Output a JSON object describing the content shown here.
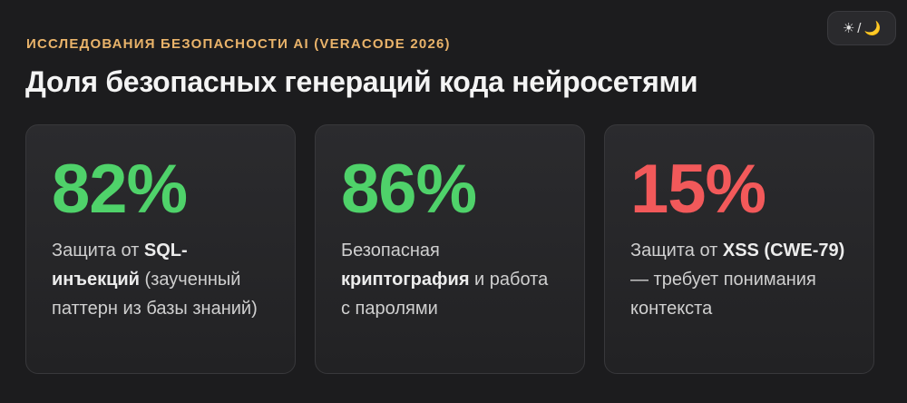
{
  "header": {
    "kicker": "ИССЛЕДОВАНИЯ БЕЗОПАСНОСТИ AI (VERACODE 2026)",
    "title": "Доля безопасных генераций кода нейросетями"
  },
  "theme_toggle": {
    "sun_glyph": "☀",
    "separator": "/",
    "moon_glyph": "🌙",
    "icons": [
      "sun-icon",
      "moon-icon"
    ]
  },
  "colors": {
    "accent_kicker": "#e9b36a",
    "good": "#4fd26a",
    "bad": "#f2595a",
    "background": "#1c1c1e"
  },
  "cards": [
    {
      "value": "82%",
      "status": "good",
      "pre": "Защита от ",
      "bold": "SQL-инъекций",
      "post": " (заученный паттерн из базы знаний)"
    },
    {
      "value": "86%",
      "status": "good",
      "pre": "Безопасная ",
      "bold": "криптография",
      "post": " и работа с паролями"
    },
    {
      "value": "15%",
      "status": "bad",
      "pre": "Защита от ",
      "bold": "XSS (CWE-79)",
      "post": " — требует понимания контекста"
    }
  ]
}
